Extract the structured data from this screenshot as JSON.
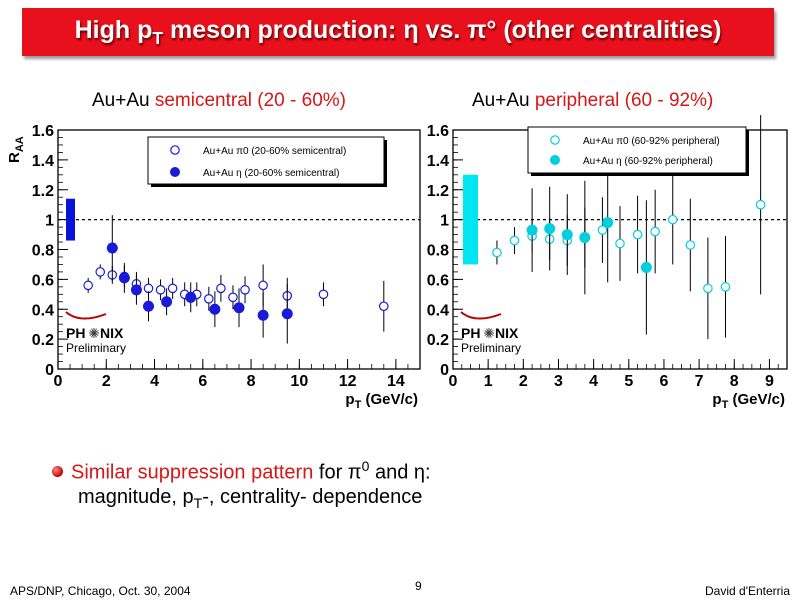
{
  "slide": {
    "title_main": "High p",
    "title_sub": "T",
    "title_rest": " meson production: η vs. π° (other centralities)",
    "bullet_highlight": "Similar suppression pattern",
    "bullet_rest_a": " for π",
    "bullet_sup": "0",
    "bullet_rest_b": " and η:",
    "bullet_line2_a": "magnitude, p",
    "bullet_line2_sub": "T",
    "bullet_line2_b": "-, centrality-  dependence",
    "footer_left": "APS/DNP, Chicago, Oct. 30, 2004",
    "footer_right": "David d'Enterria",
    "page_number": "9"
  },
  "panels": [
    {
      "title_prefix": "Au+Au ",
      "title_highlight": "semicentral (20 - 60%)"
    },
    {
      "title_prefix": "Au+Au ",
      "title_highlight": "peripheral (60 - 92%)"
    }
  ],
  "chart_data": [
    {
      "type": "scatter",
      "ylabel": "R",
      "ylabel_sub": "AA",
      "xlabel": "p",
      "xlabel_sub": "T",
      "xlabel_unit": " (GeV/c)",
      "xlim": [
        0,
        15
      ],
      "ylim": [
        0,
        1.6
      ],
      "xticks": [
        "0",
        "2",
        "4",
        "6",
        "8",
        "10",
        "12",
        "14"
      ],
      "yticks": [
        "0",
        "0.2",
        "0.4",
        "0.6",
        "0.8",
        "1",
        "1.2",
        "1.4",
        "1.6"
      ],
      "reference_line": 1,
      "norm_box": {
        "center": 1.0,
        "half_height": 0.14,
        "color": "#0a14d8"
      },
      "logo": "PHENIX",
      "logo_caption": "Preliminary",
      "series": [
        {
          "name": "Au+Au π0 (20-60% semicentral)",
          "marker": "open-circle",
          "color": "#1a1ad8",
          "points": [
            {
              "x": 1.25,
              "y": 0.56,
              "err": 0.05
            },
            {
              "x": 1.75,
              "y": 0.65,
              "err": 0.05
            },
            {
              "x": 2.25,
              "y": 0.63,
              "err": 0.06
            },
            {
              "x": 2.75,
              "y": 0.62,
              "err": 0.07
            },
            {
              "x": 3.25,
              "y": 0.57,
              "err": 0.08
            },
            {
              "x": 3.75,
              "y": 0.54,
              "err": 0.07
            },
            {
              "x": 4.25,
              "y": 0.53,
              "err": 0.07
            },
            {
              "x": 4.75,
              "y": 0.54,
              "err": 0.07
            },
            {
              "x": 5.25,
              "y": 0.5,
              "err": 0.08
            },
            {
              "x": 5.75,
              "y": 0.5,
              "err": 0.08
            },
            {
              "x": 6.25,
              "y": 0.47,
              "err": 0.08
            },
            {
              "x": 6.75,
              "y": 0.54,
              "err": 0.09
            },
            {
              "x": 7.25,
              "y": 0.48,
              "err": 0.08
            },
            {
              "x": 7.75,
              "y": 0.53,
              "err": 0.09
            },
            {
              "x": 8.5,
              "y": 0.56,
              "err": 0.14
            },
            {
              "x": 9.5,
              "y": 0.49,
              "err": 0.12
            },
            {
              "x": 11.0,
              "y": 0.5,
              "err": 0.08
            },
            {
              "x": 13.5,
              "y": 0.42,
              "err": 0.17
            }
          ]
        },
        {
          "name": "Au+Au η (20-60% semicentral)",
          "marker": "filled-circle",
          "color": "#1a1ad8",
          "points": [
            {
              "x": 2.25,
              "y": 0.81,
              "err": 0.22
            },
            {
              "x": 2.75,
              "y": 0.61,
              "err": 0.1
            },
            {
              "x": 3.25,
              "y": 0.53,
              "err": 0.1
            },
            {
              "x": 3.75,
              "y": 0.42,
              "err": 0.1
            },
            {
              "x": 4.5,
              "y": 0.45,
              "err": 0.09
            },
            {
              "x": 5.5,
              "y": 0.48,
              "err": 0.1
            },
            {
              "x": 6.5,
              "y": 0.4,
              "err": 0.12
            },
            {
              "x": 7.5,
              "y": 0.41,
              "err": 0.13
            },
            {
              "x": 8.5,
              "y": 0.36,
              "err": 0.15
            },
            {
              "x": 9.5,
              "y": 0.37,
              "err": 0.2
            }
          ]
        }
      ]
    },
    {
      "type": "scatter",
      "ylabel": "",
      "xlabel": "p",
      "xlabel_sub": "T",
      "xlabel_unit": " (GeV/c)",
      "xlim": [
        0,
        9.5
      ],
      "ylim": [
        0,
        1.6
      ],
      "xticks": [
        "0",
        "1",
        "2",
        "3",
        "4",
        "5",
        "6",
        "7",
        "8",
        "9"
      ],
      "yticks": [
        "0",
        "0.2",
        "0.4",
        "0.6",
        "0.8",
        "1",
        "1.2",
        "1.4",
        "1.6"
      ],
      "reference_line": 1,
      "norm_box": {
        "center": 1.0,
        "half_height": 0.3,
        "color": "#00e5f2"
      },
      "logo": "PHENIX",
      "logo_caption": "Preliminary",
      "series": [
        {
          "name": "Au+Au π0 (60-92% peripheral)",
          "marker": "open-circle",
          "color": "#00cfe0",
          "points": [
            {
              "x": 1.25,
              "y": 0.78,
              "err": 0.08
            },
            {
              "x": 1.75,
              "y": 0.86,
              "err": 0.09
            },
            {
              "x": 2.25,
              "y": 0.89,
              "err": 0.11
            },
            {
              "x": 2.75,
              "y": 0.87,
              "err": 0.14
            },
            {
              "x": 3.25,
              "y": 0.86,
              "err": 0.17
            },
            {
              "x": 3.75,
              "y": 0.88,
              "err": 0.2
            },
            {
              "x": 4.25,
              "y": 0.93,
              "err": 0.22
            },
            {
              "x": 4.75,
              "y": 0.84,
              "err": 0.25
            },
            {
              "x": 5.25,
              "y": 0.9,
              "err": 0.26
            },
            {
              "x": 5.75,
              "y": 0.92,
              "err": 0.28
            },
            {
              "x": 6.25,
              "y": 1.0,
              "err": 0.3
            },
            {
              "x": 6.75,
              "y": 0.83,
              "err": 0.31
            },
            {
              "x": 7.25,
              "y": 0.54,
              "err": 0.34
            },
            {
              "x": 7.75,
              "y": 0.55,
              "err": 0.34
            },
            {
              "x": 8.75,
              "y": 1.1,
              "err": 0.6
            }
          ]
        },
        {
          "name": "Au+Au η (60-92% peripheral)",
          "marker": "filled-circle",
          "color": "#00cfe0",
          "points": [
            {
              "x": 2.25,
              "y": 0.93,
              "err": 0.28
            },
            {
              "x": 2.75,
              "y": 0.94,
              "err": 0.28
            },
            {
              "x": 3.25,
              "y": 0.9,
              "err": 0.27
            },
            {
              "x": 3.75,
              "y": 0.88,
              "err": 0.38
            },
            {
              "x": 4.4,
              "y": 0.98,
              "err": 0.4
            },
            {
              "x": 5.5,
              "y": 0.68,
              "err": 0.45
            }
          ]
        }
      ]
    }
  ]
}
